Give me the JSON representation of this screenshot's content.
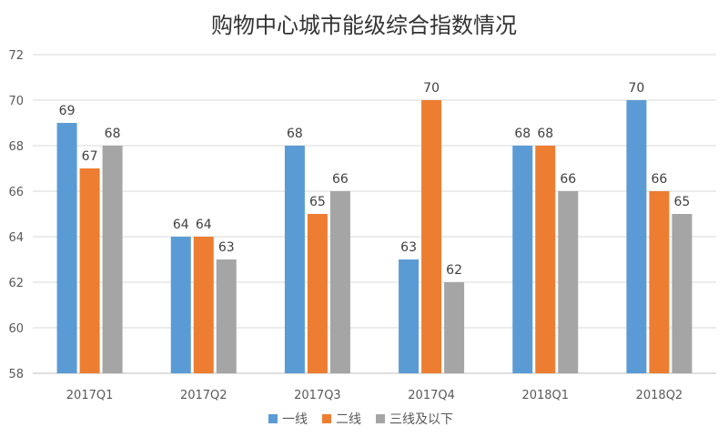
{
  "chart_data": {
    "type": "bar",
    "title": "购物中心城市能级综合指数情况",
    "xlabel": "",
    "ylabel": "",
    "categories": [
      "2017Q1",
      "2017Q2",
      "2017Q3",
      "2017Q4",
      "2018Q1",
      "2018Q2"
    ],
    "series": [
      {
        "name": "一线",
        "color": "#5B9BD5",
        "values": [
          69,
          64,
          68,
          63,
          68,
          70
        ]
      },
      {
        "name": "二线",
        "color": "#ED7D31",
        "values": [
          67,
          64,
          65,
          70,
          68,
          66
        ]
      },
      {
        "name": "三线及以下",
        "color": "#A5A5A5",
        "values": [
          68,
          63,
          66,
          62,
          66,
          65
        ]
      }
    ],
    "ylim": [
      58,
      72
    ],
    "yticks": [
      58,
      60,
      62,
      64,
      66,
      68,
      70,
      72
    ],
    "grid": true,
    "legend_position": "bottom",
    "data_labels": true
  }
}
